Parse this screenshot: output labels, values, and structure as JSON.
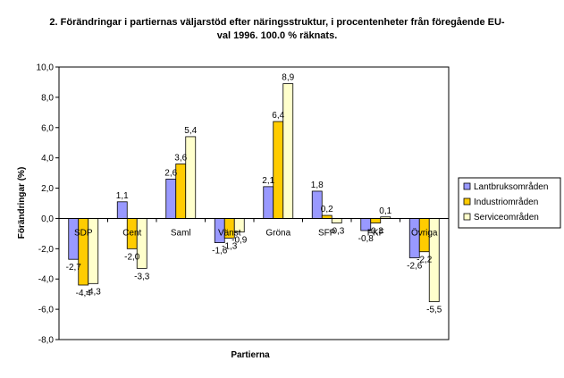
{
  "chart_data": {
    "type": "bar",
    "title_line1": "2. Förändringar i partiernas väljarstöd efter näringsstruktur, i procentenheter från föregående EU-",
    "title_line2": "val 1996. 100.0 % räknats.",
    "xlabel": "Partierna",
    "ylabel": "Förändringar (%)",
    "ylim": [
      -8,
      10
    ],
    "yticks": [
      "-8,0",
      "-6,0",
      "-4,0",
      "-2,0",
      "0,0",
      "2,0",
      "4,0",
      "6,0",
      "8,0",
      "10,0"
    ],
    "ytick_values": [
      -8,
      -6,
      -4,
      -2,
      0,
      2,
      4,
      6,
      8,
      10
    ],
    "categories": [
      "SDP",
      "Cent",
      "Saml",
      "Vänst",
      "Gröna",
      "SFP",
      "FKF",
      "Övriga"
    ],
    "series": [
      {
        "name": "Lantbruksområden",
        "color": "#9999ff",
        "values": [
          -2.7,
          1.1,
          2.6,
          -1.6,
          2.1,
          1.8,
          -0.8,
          -2.6
        ],
        "labels": [
          "-2,7",
          "1,1",
          "2,6",
          "-1,6",
          "2,1",
          "1,8",
          "-0,8",
          "-2,6"
        ]
      },
      {
        "name": "Industriområden",
        "color": "#ffcc00",
        "values": [
          -4.4,
          -2.0,
          3.6,
          -1.3,
          6.4,
          0.2,
          -0.3,
          -2.2
        ],
        "labels": [
          "-4,4",
          "-2,0",
          "3,6",
          "-1,3",
          "6,4",
          "0,2",
          "-0,3",
          "-2,2"
        ]
      },
      {
        "name": "Serviceområden",
        "color": "#ffffcc",
        "values": [
          -4.3,
          -3.3,
          5.4,
          -0.9,
          8.9,
          -0.3,
          0.1,
          -5.5
        ],
        "labels": [
          "-4,3",
          "-3,3",
          "5,4",
          "-0,9",
          "8,9",
          "-0,3",
          "0,1",
          "-5,5"
        ]
      }
    ],
    "grid": false,
    "legend_position": "right"
  }
}
